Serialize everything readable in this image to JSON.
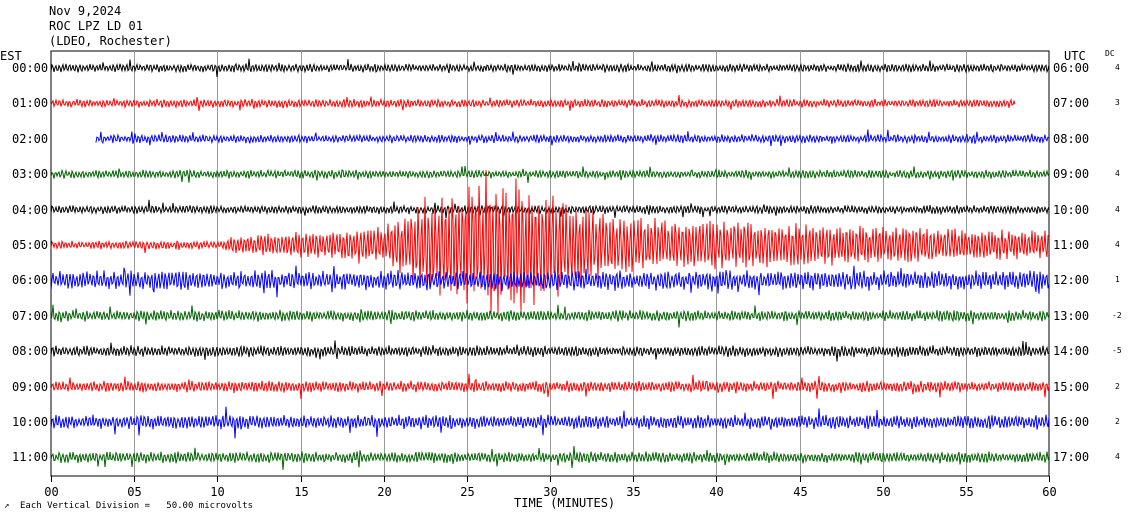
{
  "header": {
    "date": "Nov 9,2024",
    "station": "ROC LPZ LD 01",
    "network": "(LDEO, Rochester)"
  },
  "left_tz": "EST",
  "right_tz": "UTC",
  "dc_header": "DC",
  "xlabel": "TIME (MINUTES)",
  "footer_note": "Each Vertical Division =   50.00 microvolts",
  "chart_data": {
    "type": "line",
    "title": "",
    "xlabel": "TIME (MINUTES)",
    "xlim": [
      0,
      60
    ],
    "x_ticks": [
      "00",
      "05",
      "10",
      "15",
      "20",
      "25",
      "30",
      "35",
      "40",
      "45",
      "50",
      "55",
      "60"
    ],
    "grid": true,
    "trace_colors": [
      "#000000",
      "#ff0000",
      "#0000ff",
      "#006400"
    ],
    "traces": [
      {
        "est": "00:00",
        "utc": "06:00",
        "dc": "4",
        "start_min": 0,
        "end_min": 60,
        "base_amp": 3,
        "color": "#000000"
      },
      {
        "est": "01:00",
        "utc": "07:00",
        "dc": "3",
        "start_min": 0,
        "end_min": 58,
        "base_amp": 3,
        "color": "#ff0000"
      },
      {
        "est": "02:00",
        "utc": "08:00",
        "dc": "",
        "start_min": 2.7,
        "end_min": 60,
        "base_amp": 3,
        "color": "#0000ff"
      },
      {
        "est": "03:00",
        "utc": "09:00",
        "dc": "4",
        "start_min": 0,
        "end_min": 60,
        "base_amp": 3,
        "color": "#006400"
      },
      {
        "est": "04:00",
        "utc": "10:00",
        "dc": "4",
        "start_min": 0,
        "end_min": 60,
        "base_amp": 3,
        "color": "#000000"
      },
      {
        "est": "05:00",
        "utc": "11:00",
        "dc": "4",
        "start_min": 0,
        "end_min": 60,
        "base_amp": 3,
        "color": "#ff0000"
      },
      {
        "est": "06:00",
        "utc": "12:00",
        "dc": "1",
        "start_min": 0,
        "end_min": 60,
        "base_amp": 7,
        "color": "#0000ff"
      },
      {
        "est": "07:00",
        "utc": "13:00",
        "dc": "-2",
        "start_min": 0,
        "end_min": 60,
        "base_amp": 4,
        "color": "#006400"
      },
      {
        "est": "08:00",
        "utc": "14:00",
        "dc": "-5",
        "start_min": 0,
        "end_min": 60,
        "base_amp": 4,
        "color": "#000000"
      },
      {
        "est": "09:00",
        "utc": "15:00",
        "dc": "2",
        "start_min": 0,
        "end_min": 60,
        "base_amp": 4,
        "color": "#ff0000"
      },
      {
        "est": "10:00",
        "utc": "16:00",
        "dc": "2",
        "start_min": 0,
        "end_min": 60,
        "base_amp": 5,
        "color": "#0000ff"
      },
      {
        "est": "11:00",
        "utc": "17:00",
        "dc": "4",
        "start_min": 0,
        "end_min": 60,
        "base_amp": 4,
        "color": "#006400"
      }
    ],
    "event": {
      "trace_index": 5,
      "onset_min": 10.5,
      "peak_min": 27,
      "end_min": 60
    }
  }
}
